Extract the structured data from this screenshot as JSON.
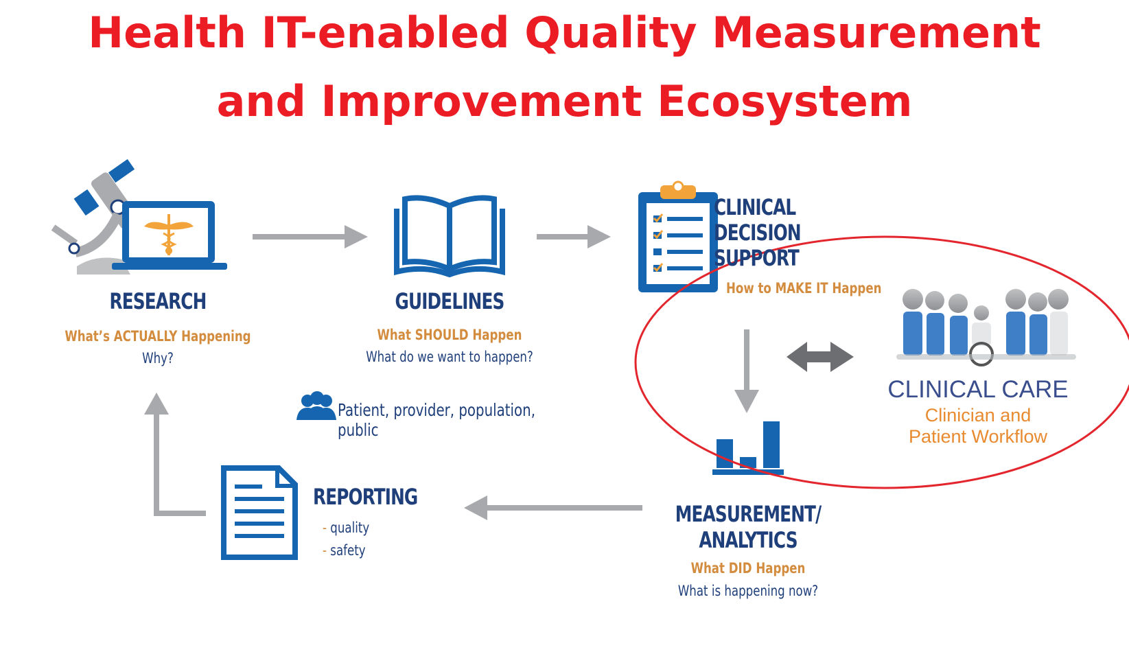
{
  "title": {
    "line1": "Health IT-enabled Quality Measurement",
    "line2": "and Improvement Ecosystem"
  },
  "nodes": {
    "research": {
      "title": "RESEARCH",
      "subtitle": "What’s ACTUALLY Happening",
      "question": "Why?"
    },
    "guidelines": {
      "title": "GUIDELINES",
      "subtitle": "What SHOULD Happen",
      "question": "What do we want to happen?"
    },
    "cds": {
      "title_line1": "CLINICAL",
      "title_line2": "DECISION",
      "title_line3": "SUPPORT",
      "subtitle": "How to MAKE IT Happen"
    },
    "measurement": {
      "title_line1": "MEASUREMENT/",
      "title_line2": "ANALYTICS",
      "subtitle": "What DID Happen",
      "question": "What is happening now?"
    },
    "reporting": {
      "title": "REPORTING",
      "item1": "quality",
      "item2": "safety",
      "bullet": "-"
    },
    "clinical_care": {
      "title": "CLINICAL CARE",
      "sub_line1": "Clinician and",
      "sub_line2": "Patient Workflow"
    }
  },
  "population_note": "Patient, provider, population, public",
  "colors": {
    "title_red": "#ec1c24",
    "navy": "#1f3f7a",
    "icon_blue": "#1565b0",
    "orange": "#d38c3e",
    "care_orange": "#e88a2f",
    "arrow_gray": "#a7a9ac",
    "ellipse_red": "#e3262d"
  },
  "icons": [
    "microscope-icon",
    "laptop-caduceus-icon",
    "open-book-icon",
    "clipboard-checklist-icon",
    "bar-chart-icon",
    "document-icon",
    "people-icon",
    "care-team-icon"
  ]
}
